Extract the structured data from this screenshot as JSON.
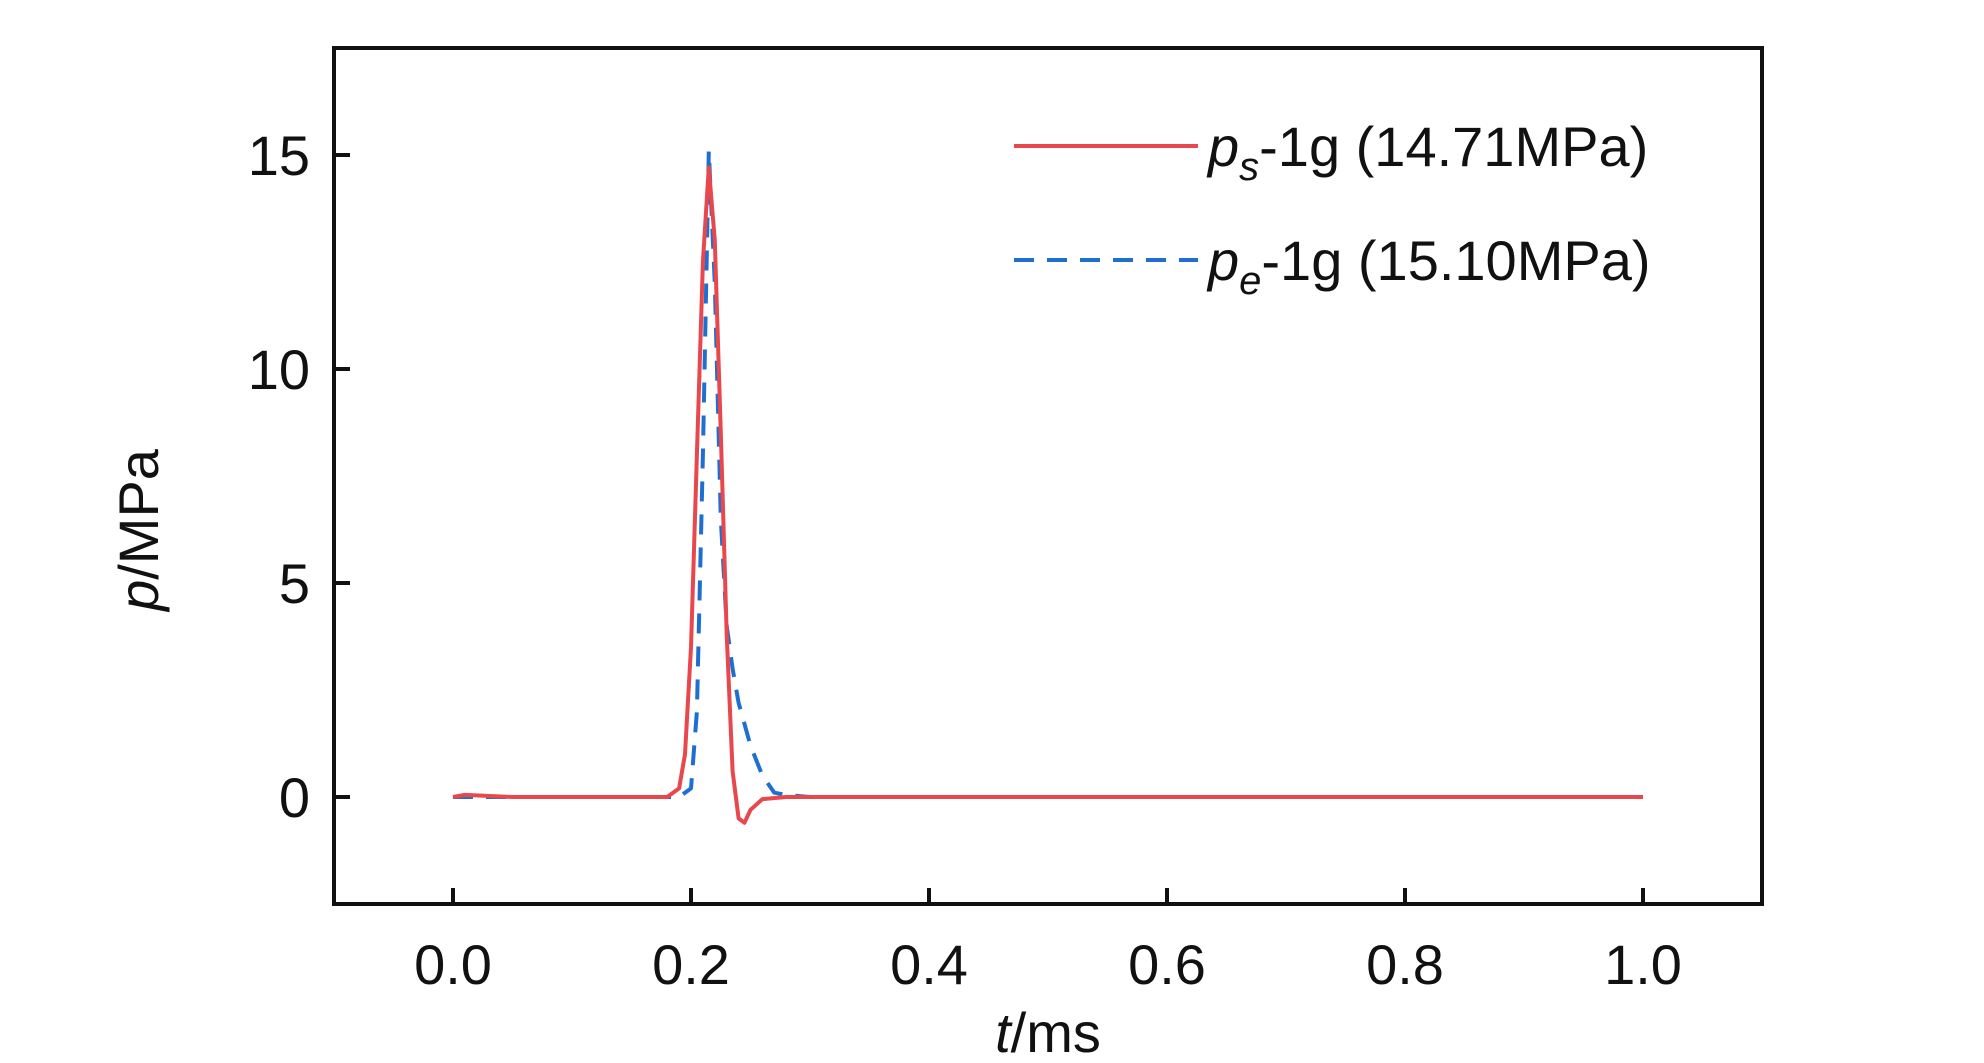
{
  "chart_data": {
    "type": "line",
    "xlabel": {
      "var": "t",
      "unit": "/ms"
    },
    "ylabel": {
      "var": "p",
      "unit": "/MPa"
    },
    "xlim": [
      -0.1,
      1.1
    ],
    "ylim": [
      -2.5,
      17.5
    ],
    "xticks": [
      "0.0",
      "0.2",
      "0.4",
      "0.6",
      "0.8",
      "1.0"
    ],
    "yticks": [
      "0",
      "5",
      "10",
      "15"
    ],
    "grid": false,
    "legend_position": "top-right",
    "series": [
      {
        "name": "ps-1g (14.71MPa)",
        "legend": {
          "var": "p",
          "sub": "s",
          "rest": "-1g (14.71MPa)"
        },
        "color": "#e8474c",
        "dash": "solid",
        "x": [
          0.0,
          0.01,
          0.05,
          0.1,
          0.15,
          0.18,
          0.19,
          0.195,
          0.2,
          0.205,
          0.21,
          0.215,
          0.22,
          0.225,
          0.23,
          0.235,
          0.24,
          0.245,
          0.25,
          0.26,
          0.28,
          0.3,
          0.4,
          0.6,
          0.8,
          1.0
        ],
        "y": [
          0.0,
          0.05,
          0.0,
          0.0,
          0.0,
          0.0,
          0.2,
          1.0,
          3.5,
          8.0,
          12.5,
          14.71,
          13.0,
          8.5,
          3.8,
          0.6,
          -0.5,
          -0.6,
          -0.3,
          -0.05,
          0.0,
          0.0,
          0.0,
          0.0,
          0.0,
          0.0
        ]
      },
      {
        "name": "pe-1g (15.10MPa)",
        "legend": {
          "var": "p",
          "sub": "e",
          "rest": "-1g (15.10MPa)"
        },
        "color": "#1f6fd1",
        "dash": "dashed",
        "x": [
          0.0,
          0.05,
          0.1,
          0.15,
          0.19,
          0.2,
          0.205,
          0.21,
          0.215,
          0.22,
          0.225,
          0.23,
          0.235,
          0.24,
          0.25,
          0.26,
          0.27,
          0.28,
          0.3,
          0.4,
          0.6,
          0.8,
          1.0
        ],
        "y": [
          0.0,
          0.0,
          0.0,
          0.0,
          0.0,
          0.2,
          2.0,
          8.0,
          15.1,
          12.0,
          6.5,
          4.0,
          3.0,
          2.2,
          1.2,
          0.5,
          0.1,
          0.05,
          0.0,
          0.0,
          0.0,
          0.0,
          0.0
        ]
      }
    ]
  }
}
